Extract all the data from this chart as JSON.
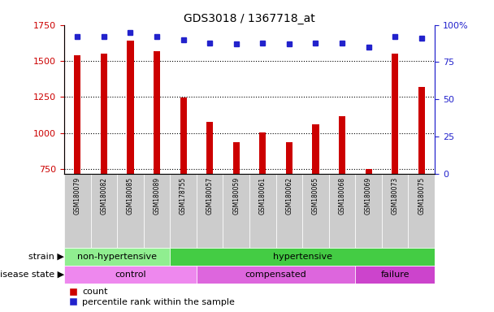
{
  "title": "GDS3018 / 1367718_at",
  "samples": [
    "GSM180079",
    "GSM180082",
    "GSM180085",
    "GSM180089",
    "GSM178755",
    "GSM180057",
    "GSM180059",
    "GSM180061",
    "GSM180062",
    "GSM180065",
    "GSM180068",
    "GSM180069",
    "GSM180073",
    "GSM180075"
  ],
  "counts": [
    1540,
    1550,
    1640,
    1570,
    1245,
    1080,
    940,
    1005,
    940,
    1060,
    1120,
    750,
    1550,
    1320
  ],
  "percentiles": [
    92,
    92,
    95,
    92,
    90,
    88,
    87,
    88,
    87,
    88,
    88,
    85,
    92,
    91
  ],
  "ylim_left": [
    720,
    1750
  ],
  "ylim_right": [
    0,
    100
  ],
  "yticks_left": [
    750,
    1000,
    1250,
    1500,
    1750
  ],
  "yticks_right": [
    0,
    25,
    50,
    75,
    100
  ],
  "strain_groups": [
    {
      "label": "non-hypertensive",
      "start": 0,
      "end": 4,
      "color": "#90ee90"
    },
    {
      "label": "hypertensive",
      "start": 4,
      "end": 14,
      "color": "#44cc44"
    }
  ],
  "disease_groups": [
    {
      "label": "control",
      "start": 0,
      "end": 5,
      "color": "#ee88ee"
    },
    {
      "label": "compensated",
      "start": 5,
      "end": 11,
      "color": "#dd66dd"
    },
    {
      "label": "failure",
      "start": 11,
      "end": 14,
      "color": "#cc44cc"
    }
  ],
  "bar_color": "#cc0000",
  "dot_color": "#2222cc",
  "label_bg_color": "#cccccc",
  "left_axis_color": "#cc0000",
  "right_axis_color": "#2222cc"
}
